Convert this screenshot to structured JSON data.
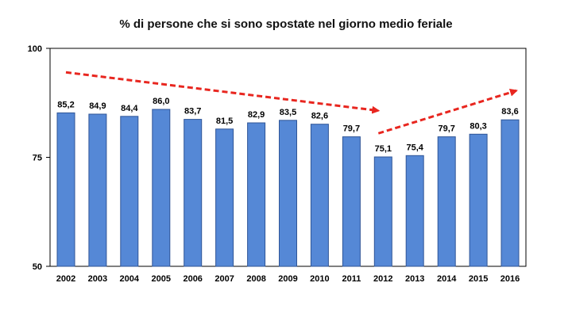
{
  "chart_data": {
    "type": "bar",
    "title": "% di persone che si sono spostate nel giorno medio feriale",
    "categories": [
      "2002",
      "2003",
      "2004",
      "2005",
      "2006",
      "2007",
      "2008",
      "2009",
      "2010",
      "2011",
      "2012",
      "2013",
      "2014",
      "2015",
      "2016"
    ],
    "values": [
      85.2,
      84.9,
      84.4,
      86.0,
      83.7,
      81.5,
      82.9,
      83.5,
      82.6,
      79.7,
      75.1,
      75.4,
      79.7,
      80.3,
      83.6
    ],
    "data_labels": [
      "85,2",
      "84,9",
      "84,4",
      "86,0",
      "83,7",
      "81,5",
      "82,9",
      "83,5",
      "82,6",
      "79,7",
      "75,1",
      "75,4",
      "79,7",
      "80,3",
      "83,6"
    ],
    "ylim": [
      50,
      100
    ],
    "yticks": [
      50,
      75,
      100
    ],
    "xlabel": "",
    "ylabel": "",
    "grid": false,
    "bar_color": "#5588d6",
    "bar_edge_color": "#2f5597",
    "trend_arrow_color": "#e8261f"
  }
}
